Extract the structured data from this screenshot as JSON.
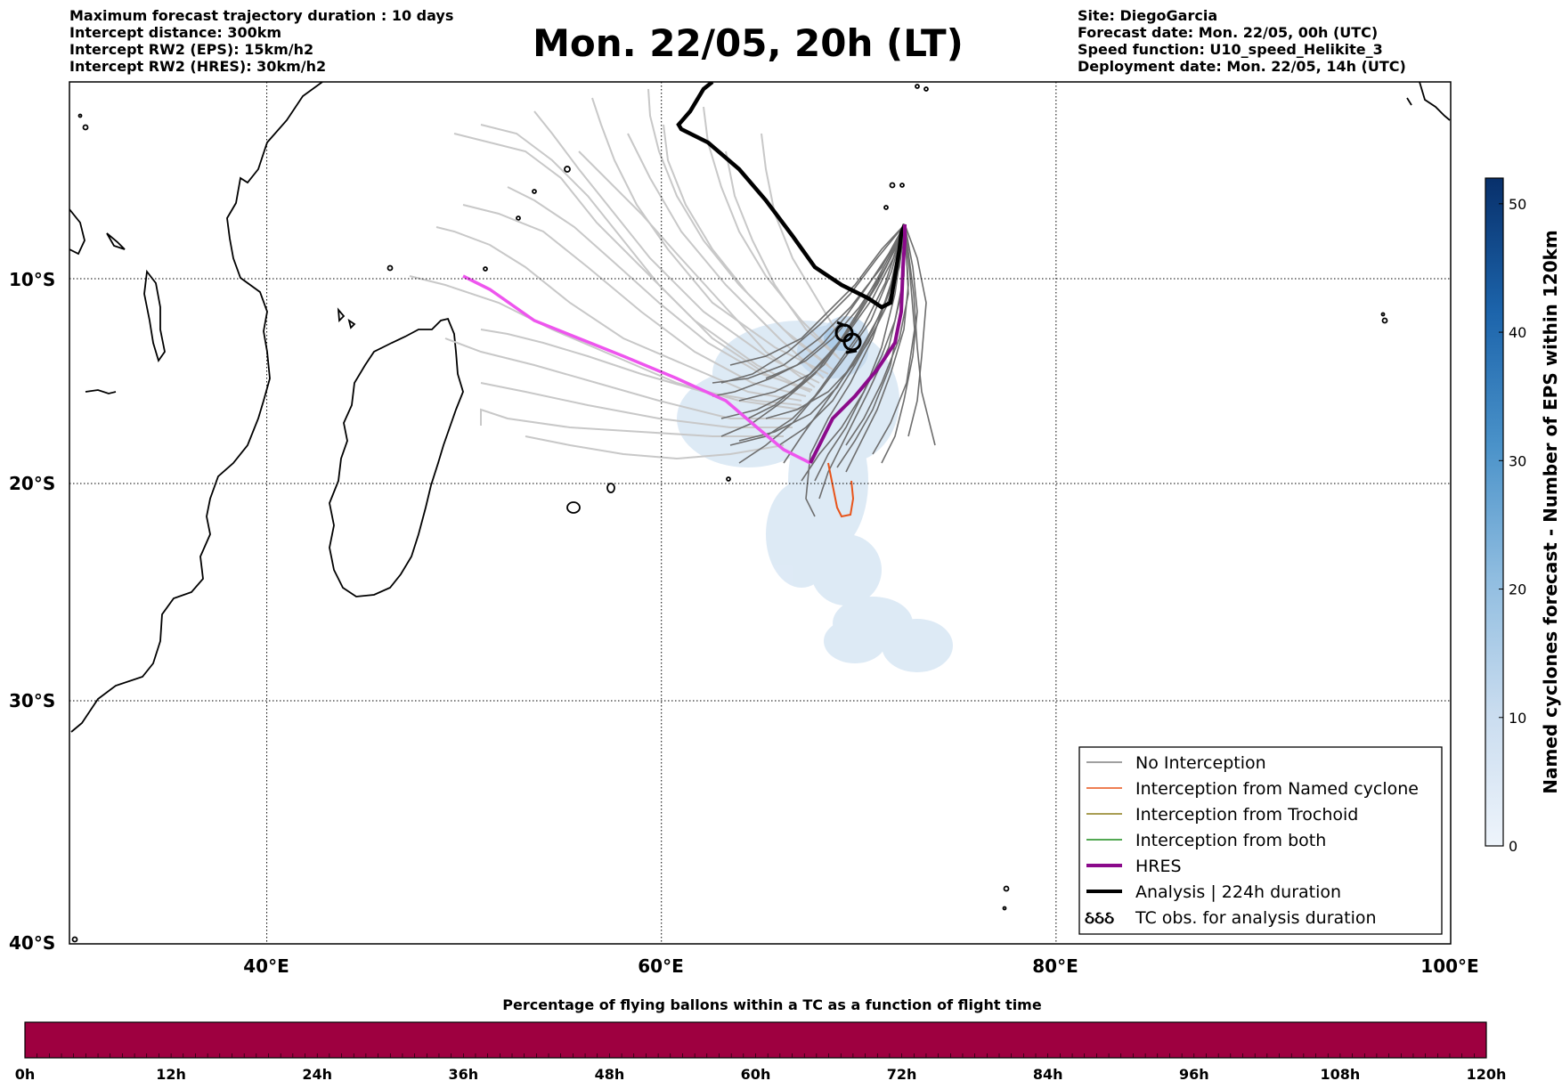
{
  "header": {
    "left_lines": [
      "Maximum forecast trajectory duration : 10 days",
      "Intercept distance: 300km",
      "Intercept RW2 (EPS):  15km/h2",
      "Intercept RW2 (HRES): 30km/h2"
    ],
    "title": "Mon. 22/05, 20h (LT)",
    "right_lines": [
      "Site: DiegoGarcia",
      "Forecast date: Mon. 22/05, 00h (UTC)",
      "Speed function: U10_speed_Helikite_3",
      "Deployment date: Mon. 22/05, 14h (UTC)"
    ]
  },
  "map": {
    "lon_range": [
      30,
      100
    ],
    "lat_range": [
      -40,
      0
    ],
    "lat_labels": [
      "10°S",
      "20°S",
      "30°S",
      "40°S"
    ],
    "lon_labels": [
      "40°E",
      "60°E",
      "80°E",
      "100°E"
    ],
    "colors": {
      "no_interception": "#6e6e6e",
      "named_cyclone": "#e8541a",
      "trochoid": "#8b7d1a",
      "both": "#1a8b1a",
      "hres": "#8b0a8b",
      "hres_early": "#ee55ee",
      "analysis": "#000000",
      "ensemble_faint": "#c8c8c8",
      "density": "#d6e6f4"
    }
  },
  "legend": {
    "items": [
      {
        "label": "No Interception",
        "style": "thin",
        "color": "#808080"
      },
      {
        "label": "Interception from Named cyclone",
        "style": "thin",
        "color": "#e8541a"
      },
      {
        "label": "Interception from Trochoid",
        "style": "thin",
        "color": "#8b7d1a"
      },
      {
        "label": "Interception from both",
        "style": "thin",
        "color": "#1a8b1a"
      },
      {
        "label": "HRES",
        "style": "thick",
        "color": "#8b0a8b"
      },
      {
        "label": "Analysis | 224h duration",
        "style": "thick",
        "color": "#000000"
      },
      {
        "label": "TC obs. for analysis duration",
        "style": "symbol",
        "symbol": "ઠઠઠ",
        "color": "#000000"
      }
    ]
  },
  "colorbar_right": {
    "label": "Named cyclones forecast - Number of EPS within 120km",
    "min": 0,
    "max": 52,
    "ticks": [
      "0",
      "10",
      "20",
      "30",
      "40",
      "50"
    ],
    "tick_values": [
      0,
      10,
      20,
      30,
      40,
      50
    ]
  },
  "colorbar_bottom": {
    "title": "Percentage of flying ballons within a TC as a function of flight time",
    "ticks": [
      "0h",
      "12h",
      "24h",
      "36h",
      "48h",
      "60h",
      "72h",
      "84h",
      "96h",
      "108h",
      "120h"
    ],
    "fill_color": "#9e0040"
  }
}
